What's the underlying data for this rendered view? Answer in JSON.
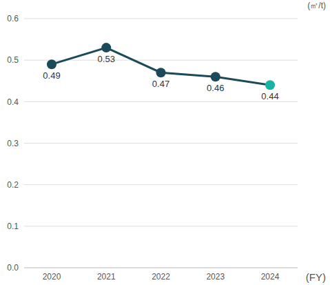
{
  "chart_data": {
    "type": "line",
    "y_label": "(㎥/t)",
    "x_label": "(FY)",
    "categories": [
      "2020",
      "2021",
      "2022",
      "2023",
      "2024"
    ],
    "values": [
      0.49,
      0.53,
      0.47,
      0.46,
      0.44
    ],
    "color": "#1d4a59",
    "colors": [
      "#1d4a59",
      "#1d4a59",
      "#1d4a59",
      "#1d4a59",
      "#1ab3a3"
    ],
    "marker": "circle",
    "ylim": [
      0,
      0.6
    ],
    "yticks": [
      {
        "value": 0,
        "label": "0.0"
      },
      0.1,
      0.2,
      0.3,
      0.4,
      0.5,
      0.6
    ],
    "grid": true,
    "data_labels": true
  }
}
